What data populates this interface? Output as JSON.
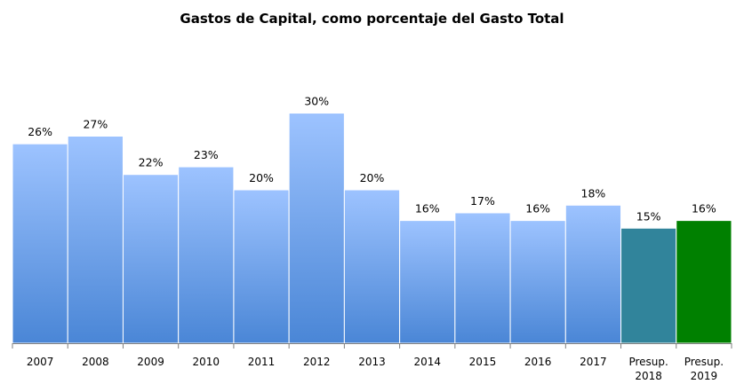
{
  "chart_data": {
    "type": "bar",
    "title": "Gastos de Capital, como porcentaje del Gasto Total",
    "categories": [
      "2007",
      "2008",
      "2009",
      "2010",
      "2011",
      "2012",
      "2013",
      "2014",
      "2015",
      "2016",
      "2017",
      "Presup. 2018",
      "Presup. 2019"
    ],
    "values": [
      26,
      27,
      22,
      23,
      20,
      30,
      20,
      16,
      17,
      16,
      18,
      15,
      16
    ],
    "data_labels": [
      "26%",
      "27%",
      "22%",
      "23%",
      "20%",
      "30%",
      "20%",
      "16%",
      "17%",
      "16%",
      "18%",
      "15%",
      "16%"
    ],
    "unit": "%",
    "xlabel": "",
    "ylabel": "",
    "ylim": [
      0,
      37
    ],
    "grid": false,
    "legend": "none",
    "colors": {
      "historical_top": "#9DC3FF",
      "historical_bottom": "#4A86D6",
      "budget_2018": "#31849B",
      "budget_2019": "#008000",
      "axis": "#7F7F7F"
    }
  }
}
